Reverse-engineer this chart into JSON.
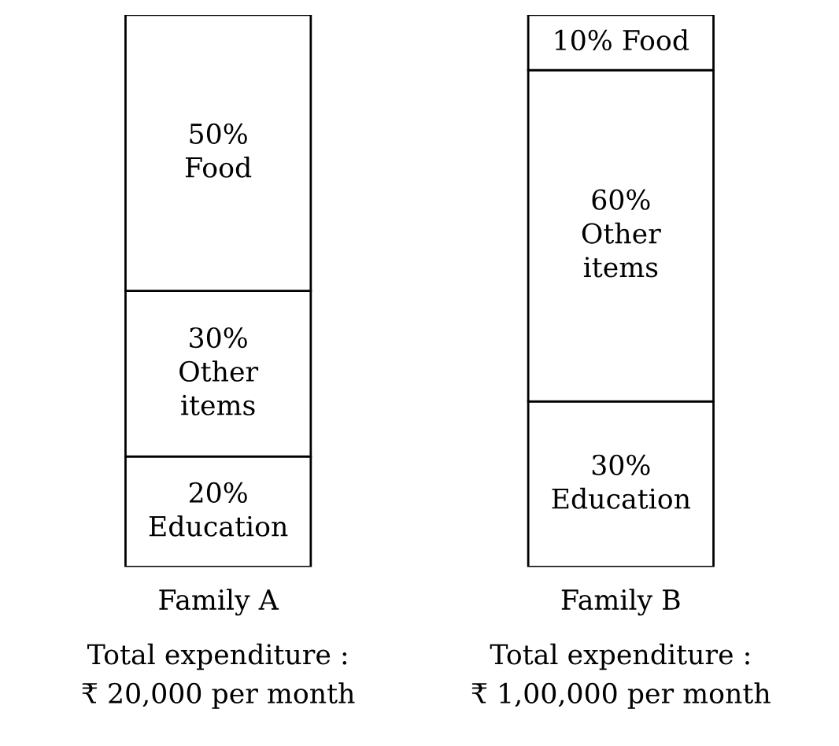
{
  "chart_data": {
    "type": "bar",
    "stacked": true,
    "categories": [
      "Family A",
      "Family B"
    ],
    "series": [
      {
        "color": "#ffffff",
        "values": [
          20,
          30
        ],
        "value_labels": [
          "20%\nEducation",
          "30%\nEducation"
        ]
      },
      {
        "color": "#ffffff",
        "values": [
          30,
          60
        ],
        "value_labels": [
          "30%\nOther\nitems",
          "60%\nOther\nitems"
        ]
      },
      {
        "color": "#ffffff",
        "values": [
          50,
          10
        ],
        "value_labels": [
          "50%\nFood",
          "10% Food"
        ]
      }
    ],
    "annotations": [
      "Total expenditure :\n₹ 20,000 per month",
      "Total expenditure :\n₹ 1,00,000 per month"
    ],
    "grid": false,
    "legend": false
  }
}
